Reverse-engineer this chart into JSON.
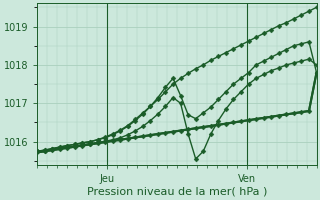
{
  "title": "",
  "xlabel": "Pression niveau de la mer( hPa )",
  "ylabel": "",
  "background_color": "#cce8dc",
  "grid_color": "#aacfbe",
  "line_color": "#1a5c28",
  "xlim": [
    0,
    56
  ],
  "ylim": [
    1015.4,
    1019.6
  ],
  "yticks": [
    1016,
    1017,
    1018,
    1019
  ],
  "ytick_fontsize": 7,
  "xtick_labels": [
    [
      "Jeu",
      14
    ],
    [
      "Ven",
      42
    ]
  ],
  "xtick_fontsize": 7,
  "xlabel_fontsize": 8,
  "series": [
    {
      "y": [
        1015.75,
        1015.78,
        1015.82,
        1015.86,
        1015.9,
        1015.93,
        1015.97,
        1016.0,
        1016.05,
        1016.12,
        1016.2,
        1016.3,
        1016.42,
        1016.58,
        1016.75,
        1016.92,
        1017.1,
        1017.3,
        1017.5,
        1017.65,
        1017.78,
        1017.9,
        1018.0,
        1018.12,
        1018.22,
        1018.32,
        1018.42,
        1018.52,
        1018.62,
        1018.72,
        1018.82,
        1018.92,
        1019.02,
        1019.1,
        1019.2,
        1019.3,
        1019.4,
        1019.5
      ],
      "lw": 1.0,
      "ms": 2.5,
      "marker": "D"
    },
    {
      "y": [
        1015.75,
        1015.78,
        1015.82,
        1015.86,
        1015.9,
        1015.93,
        1015.97,
        1016.0,
        1016.05,
        1016.1,
        1016.18,
        1016.28,
        1016.4,
        1016.55,
        1016.72,
        1016.92,
        1017.15,
        1017.42,
        1017.65,
        1017.2,
        1016.7,
        1016.6,
        1016.75,
        1016.9,
        1017.1,
        1017.3,
        1017.5,
        1017.65,
        1017.8,
        1018.0,
        1018.1,
        1018.2,
        1018.3,
        1018.4,
        1018.5,
        1018.55,
        1018.6,
        1017.8
      ],
      "lw": 1.0,
      "ms": 2.5,
      "marker": "D"
    },
    {
      "y": [
        1015.75,
        1015.77,
        1015.8,
        1015.83,
        1015.86,
        1015.89,
        1015.92,
        1015.95,
        1015.98,
        1016.01,
        1016.05,
        1016.1,
        1016.18,
        1016.28,
        1016.4,
        1016.55,
        1016.72,
        1016.92,
        1017.15,
        1017.0,
        1016.2,
        1015.55,
        1015.75,
        1016.2,
        1016.55,
        1016.85,
        1017.1,
        1017.3,
        1017.5,
        1017.65,
        1017.75,
        1017.85,
        1017.92,
        1018.0,
        1018.05,
        1018.1,
        1018.15,
        1018.0
      ],
      "lw": 1.0,
      "ms": 2.5,
      "marker": "D"
    },
    {
      "y": [
        1015.72,
        1015.75,
        1015.78,
        1015.81,
        1015.84,
        1015.87,
        1015.9,
        1015.93,
        1015.96,
        1015.99,
        1016.02,
        1016.05,
        1016.08,
        1016.11,
        1016.14,
        1016.17,
        1016.2,
        1016.23,
        1016.26,
        1016.29,
        1016.32,
        1016.35,
        1016.38,
        1016.41,
        1016.44,
        1016.47,
        1016.5,
        1016.53,
        1016.56,
        1016.59,
        1016.62,
        1016.65,
        1016.68,
        1016.71,
        1016.74,
        1016.77,
        1016.8,
        1017.8
      ],
      "lw": 1.5,
      "ms": 2.5,
      "marker": "D"
    },
    {
      "y": [
        1015.72,
        1015.75,
        1015.78,
        1015.81,
        1015.84,
        1015.87,
        1015.9,
        1015.93,
        1015.96,
        1015.99,
        1016.02,
        1016.05,
        1016.08,
        1016.11,
        1016.14,
        1016.17,
        1016.2,
        1016.23,
        1016.26,
        1016.29,
        1016.32,
        1016.35,
        1016.38,
        1016.41,
        1016.44,
        1016.47,
        1016.5,
        1016.53,
        1016.56,
        1016.59,
        1016.62,
        1016.65,
        1016.68,
        1016.71,
        1016.74,
        1016.77,
        1016.8,
        1017.8
      ],
      "lw": 1.5,
      "ms": 0,
      "marker": "None"
    }
  ],
  "vlines": [
    14,
    42
  ]
}
